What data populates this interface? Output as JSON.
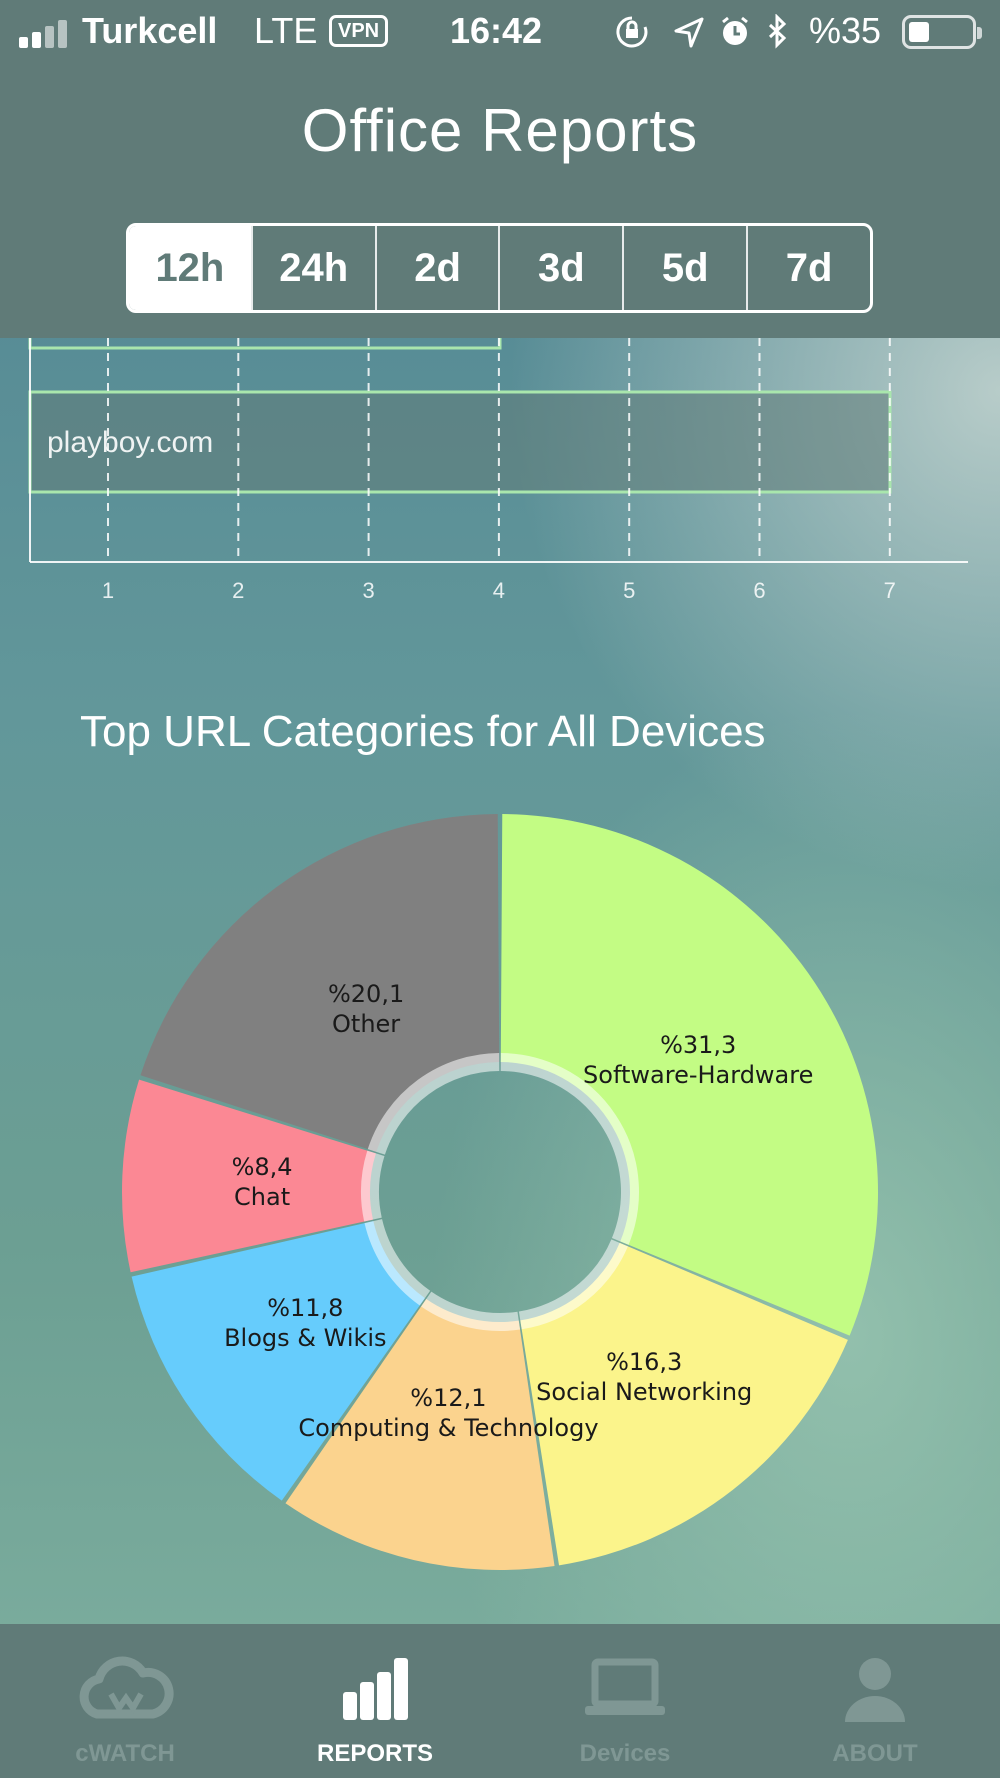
{
  "status_bar": {
    "carrier": "Turkcell",
    "network": "LTE",
    "vpn": "VPN",
    "time": "16:42",
    "battery": "%35",
    "battery_level": 0.35
  },
  "header": {
    "title": "Office Reports",
    "ranges": [
      "12h",
      "24h",
      "2d",
      "3d",
      "5d",
      "7d"
    ],
    "selected_range": "12h"
  },
  "top_sites_chart": {
    "bar_label": "playboy.com",
    "ticks": [
      "1",
      "2",
      "3",
      "4",
      "5",
      "6",
      "7"
    ]
  },
  "categories_section": {
    "title": "Top URL Categories for All Devices"
  },
  "chart_data": {
    "type": "pie",
    "title": "Top URL Categories for All Devices",
    "slices": [
      {
        "label": "Software-Hardware",
        "percent_text": "%31,3",
        "value": 31.3,
        "color": "#c3fc84"
      },
      {
        "label": "Social Networking",
        "percent_text": "%16,3",
        "value": 16.3,
        "color": "#fbf48b"
      },
      {
        "label": "Computing & Technology",
        "percent_text": "%12,1",
        "value": 12.1,
        "color": "#fbd38e"
      },
      {
        "label": "Blogs & Wikis",
        "percent_text": "%11,8",
        "value": 11.8,
        "color": "#66ccfc"
      },
      {
        "label": "Chat",
        "percent_text": "%8,4",
        "value": 8.4,
        "color": "#fb8894"
      },
      {
        "label": "Other",
        "percent_text": "%20,1",
        "value": 20.1,
        "color": "#808080"
      }
    ]
  },
  "tabs": [
    {
      "label": "cWATCH",
      "icon": "cloud-icon",
      "active": false
    },
    {
      "label": "REPORTS",
      "icon": "bar-chart-icon",
      "active": true
    },
    {
      "label": "Devices",
      "icon": "laptop-icon",
      "active": false
    },
    {
      "label": "ABOUT",
      "icon": "person-icon",
      "active": false
    }
  ]
}
